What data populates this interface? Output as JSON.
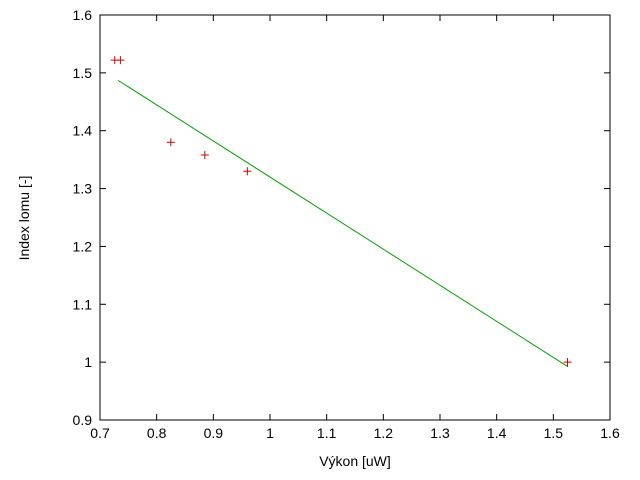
{
  "chart_data": {
    "type": "scatter",
    "title": "",
    "xlabel": "Výkon [uW]",
    "ylabel": "Index lomu [-]",
    "xlim": [
      0.7,
      1.6
    ],
    "ylim": [
      0.9,
      1.6
    ],
    "grid": false,
    "border_color": "#000000",
    "xticks": {
      "values": [
        0.7,
        0.8,
        0.9,
        1.0,
        1.1,
        1.2,
        1.3,
        1.4,
        1.5,
        1.6
      ],
      "labels": [
        "0.7",
        "0.8",
        "0.9",
        "1",
        "1.1",
        "1.2",
        "1.3",
        "1.4",
        "1.5",
        "1.6"
      ]
    },
    "yticks": {
      "values": [
        0.9,
        1.0,
        1.1,
        1.2,
        1.3,
        1.4,
        1.5,
        1.6
      ],
      "labels": [
        "0.9",
        "1",
        "1.1",
        "1.2",
        "1.3",
        "1.4",
        "1.5",
        "1.6"
      ]
    },
    "marker": "plus",
    "marker_color": "#cc0000",
    "points": [
      [
        0.726,
        1.522
      ],
      [
        0.736,
        1.522
      ],
      [
        0.825,
        1.38
      ],
      [
        0.885,
        1.358
      ],
      [
        0.96,
        1.33
      ],
      [
        1.525,
        1.0
      ]
    ],
    "fit_line": {
      "color": "#00a000",
      "x": [
        0.732,
        1.526
      ],
      "y": [
        1.487,
        0.992
      ]
    }
  }
}
